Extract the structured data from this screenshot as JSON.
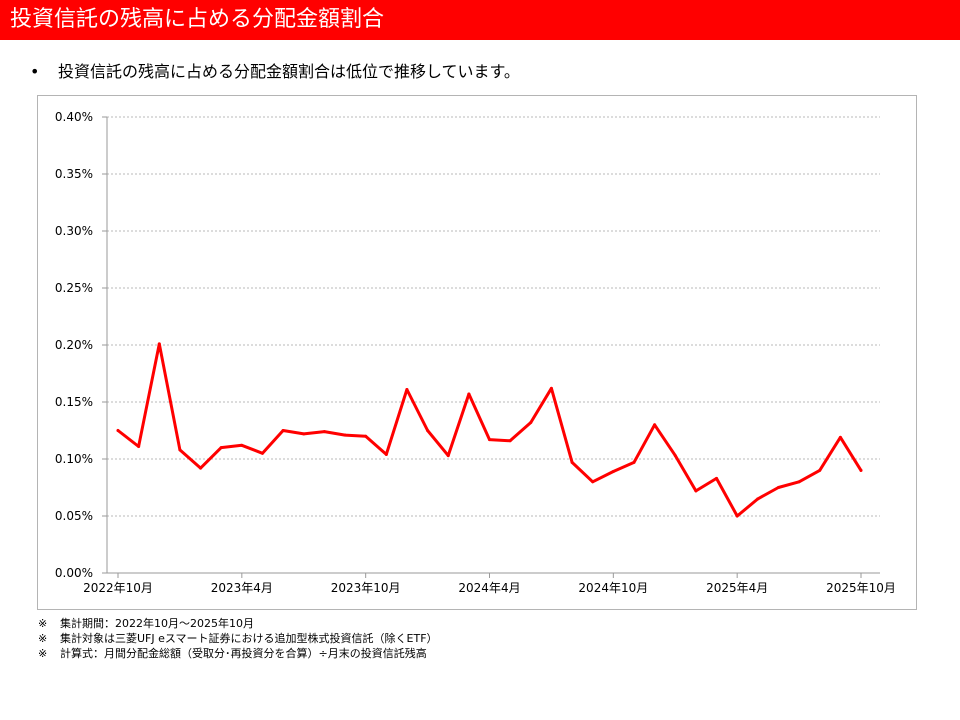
{
  "header": {
    "title": "投資信託の残高に占める分配金額割合"
  },
  "bullet": {
    "marker": "•",
    "text": "投資信託の残高に占める分配金額割合は低位で推移しています。"
  },
  "chart_data": {
    "type": "line",
    "title": "",
    "xlabel": "",
    "ylabel": "",
    "ylim": [
      0,
      0.4
    ],
    "y_unit": "%",
    "y_ticks": [
      "0.00%",
      "0.05%",
      "0.10%",
      "0.15%",
      "0.20%",
      "0.25%",
      "0.30%",
      "0.35%",
      "0.40%"
    ],
    "x": [
      "2022-10",
      "2022-11",
      "2022-12",
      "2023-01",
      "2023-02",
      "2023-03",
      "2023-04",
      "2023-05",
      "2023-06",
      "2023-07",
      "2023-08",
      "2023-09",
      "2023-10",
      "2023-11",
      "2023-12",
      "2024-01",
      "2024-02",
      "2024-03",
      "2024-04",
      "2024-05",
      "2024-06",
      "2024-07",
      "2024-08",
      "2024-09",
      "2024-10",
      "2024-11",
      "2024-12",
      "2025-01",
      "2025-02",
      "2025-03",
      "2025-04",
      "2025-05",
      "2025-06",
      "2025-07",
      "2025-08",
      "2025-09",
      "2025-10"
    ],
    "x_tick_labels": [
      {
        "index": 0,
        "label": "2022年10月"
      },
      {
        "index": 6,
        "label": "2023年4月"
      },
      {
        "index": 12,
        "label": "2023年10月"
      },
      {
        "index": 18,
        "label": "2024年4月"
      },
      {
        "index": 24,
        "label": "2024年10月"
      },
      {
        "index": 30,
        "label": "2025年4月"
      },
      {
        "index": 36,
        "label": "2025年10月"
      }
    ],
    "series": [
      {
        "color": "#ff0000",
        "values": [
          0.125,
          0.111,
          0.201,
          0.108,
          0.092,
          0.11,
          0.112,
          0.105,
          0.125,
          0.122,
          0.124,
          0.121,
          0.12,
          0.104,
          0.161,
          0.125,
          0.103,
          0.157,
          0.117,
          0.116,
          0.132,
          0.162,
          0.097,
          0.08,
          0.089,
          0.097,
          0.13,
          0.103,
          0.072,
          0.083,
          0.05,
          0.065,
          0.075,
          0.08,
          0.09,
          0.119,
          0.09
        ]
      }
    ],
    "grid": true,
    "legend": "none"
  },
  "notes": [
    {
      "mark": "※",
      "text": "集計期間：2022年10月～2025年10月"
    },
    {
      "mark": "※",
      "text": "集計対象は三菱UFJ eスマート証券における追加型株式投資信託（除くETF）"
    },
    {
      "mark": "※",
      "text": "計算式：月間分配金総額（受取分･再投資分を合算）÷月末の投資信託残高"
    }
  ]
}
